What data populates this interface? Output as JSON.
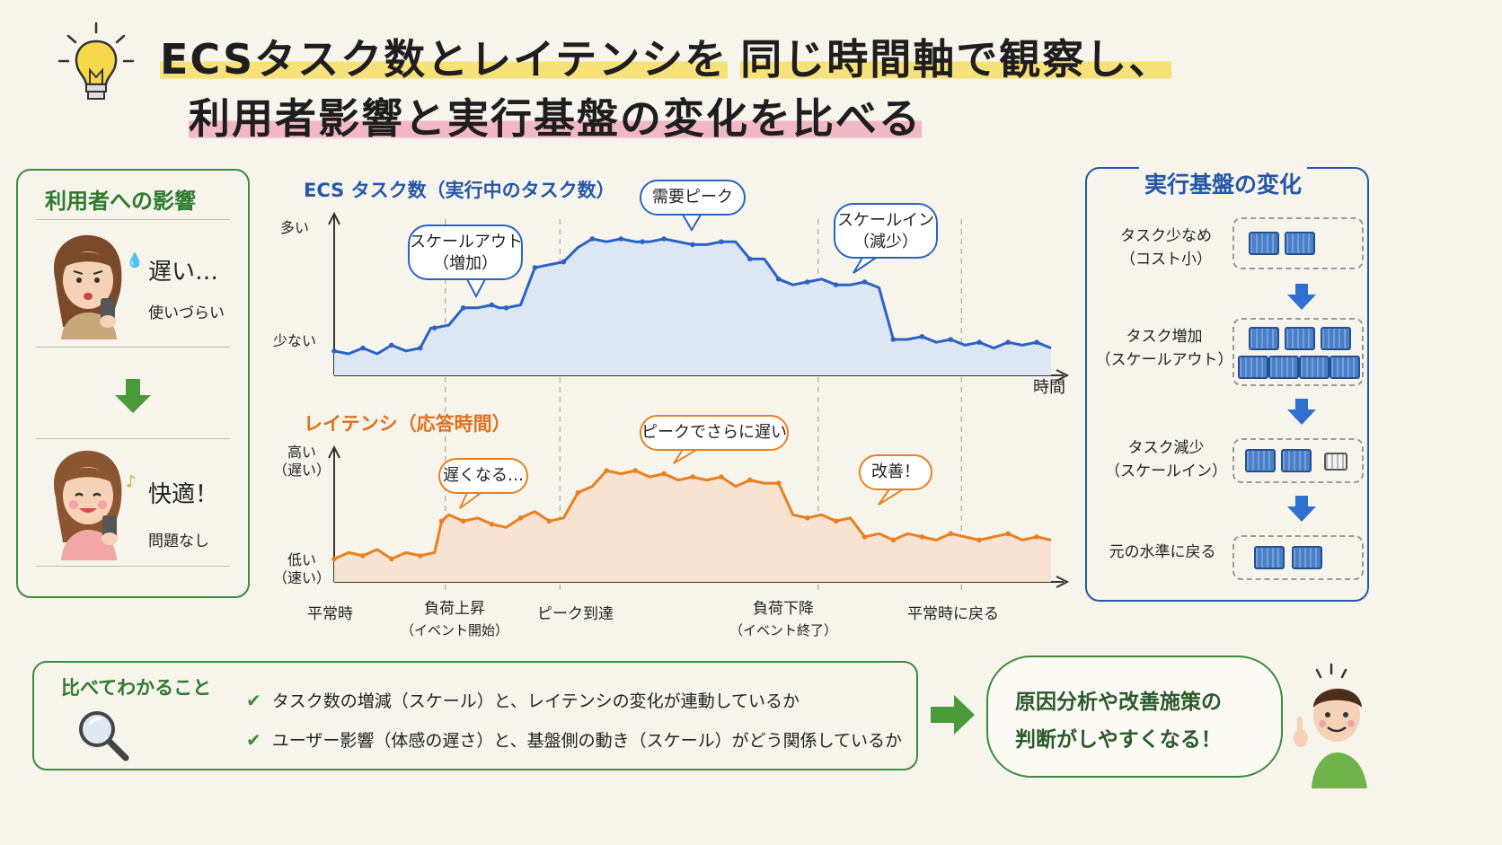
{
  "title": {
    "line1_a": "ECSタスク数とレイテンシを",
    "line1_b": "同じ時間軸で観察し、",
    "line2": "利用者影響と実行基盤の変化を比べる"
  },
  "user_impact": {
    "heading": "利用者への影響",
    "before_main": "遅い…",
    "before_sub": "使いづらい",
    "after_main": "快適！",
    "after_sub": "問題なし"
  },
  "infra": {
    "heading": "実行基盤の変化",
    "stages": [
      {
        "label_1": "タスク少なめ",
        "label_2": "（コスト小）",
        "crates": 2,
        "empty": 0
      },
      {
        "label_1": "タスク増加",
        "label_2": "（スケールアウト）",
        "crates": 7,
        "empty": 0
      },
      {
        "label_1": "タスク減少",
        "label_2": "（スケールイン）",
        "crates": 2,
        "empty": 1
      },
      {
        "label_1": "元の水準に戻る",
        "label_2": "",
        "crates": 2,
        "empty": 0
      }
    ]
  },
  "chart_data": [
    {
      "type": "line",
      "title": "ECS タスク数（実行中のタスク数）",
      "y_tick_top": "多い",
      "y_tick_bottom": "少ない",
      "xlabel": "時間",
      "color": "#2a63c4",
      "fill": "#dde6f3",
      "x": [
        0,
        4,
        8,
        12,
        16,
        20,
        24,
        27,
        28,
        32,
        36,
        40,
        44,
        46,
        48,
        52,
        56,
        60,
        64,
        68,
        72,
        76,
        80,
        84,
        86,
        88,
        92,
        96,
        100,
        104,
        108,
        112,
        116,
        120,
        124,
        128,
        132,
        136,
        140,
        144,
        148,
        152,
        156,
        160,
        164,
        168,
        172,
        176,
        180,
        184,
        188,
        192,
        196,
        200
      ],
      "values": [
        1.1,
        1.0,
        1.2,
        1.0,
        1.3,
        1.1,
        1.2,
        1.9,
        1.9,
        2.0,
        2.6,
        2.6,
        2.7,
        2.6,
        2.6,
        2.7,
        4.0,
        4.1,
        4.2,
        4.7,
        5.0,
        4.9,
        5.0,
        4.9,
        4.9,
        4.9,
        5.0,
        4.9,
        4.8,
        4.8,
        4.9,
        4.9,
        4.3,
        4.3,
        3.6,
        3.4,
        3.5,
        3.6,
        3.4,
        3.4,
        3.5,
        3.3,
        1.5,
        1.5,
        1.6,
        1.4,
        1.5,
        1.3,
        1.4,
        1.2,
        1.4,
        1.3,
        1.4,
        1.2
      ],
      "callouts": [
        {
          "text_1": "スケールアウト",
          "text_2": "（増加）"
        },
        {
          "text_1": "需要ピーク",
          "text_2": ""
        },
        {
          "text_1": "スケールイン",
          "text_2": "（減少）"
        }
      ]
    },
    {
      "type": "line",
      "title": "レイテンシ（応答時間）",
      "y_tick_top_1": "高い",
      "y_tick_top_2": "（遅い）",
      "y_tick_bottom_1": "低い",
      "y_tick_bottom_2": "（速い）",
      "color": "#e8801e",
      "fill": "#f8e3d3",
      "x": [
        0,
        4,
        8,
        12,
        16,
        20,
        24,
        28,
        30,
        32,
        36,
        40,
        44,
        48,
        52,
        56,
        60,
        64,
        68,
        72,
        76,
        80,
        84,
        88,
        92,
        96,
        100,
        104,
        108,
        112,
        116,
        120,
        124,
        128,
        132,
        136,
        140,
        144,
        148,
        152,
        156,
        160,
        164,
        168,
        172,
        176,
        180,
        184,
        188,
        192,
        196,
        200
      ],
      "values": [
        1.0,
        1.2,
        1.1,
        1.3,
        1.0,
        1.2,
        1.1,
        1.2,
        2.2,
        2.4,
        2.2,
        2.3,
        2.1,
        2.0,
        2.3,
        2.5,
        2.2,
        2.3,
        3.1,
        3.3,
        3.8,
        3.7,
        3.8,
        3.6,
        3.7,
        3.5,
        3.6,
        3.5,
        3.6,
        3.3,
        3.5,
        3.4,
        3.4,
        2.4,
        2.3,
        2.4,
        2.2,
        2.3,
        1.7,
        1.8,
        1.6,
        1.8,
        1.7,
        1.6,
        1.8,
        1.7,
        1.6,
        1.7,
        1.8,
        1.6,
        1.7,
        1.6
      ],
      "callouts": [
        {
          "text_1": "遅くなる…"
        },
        {
          "text_1": "ピークでさらに遅い"
        },
        {
          "text_1": "改善！"
        }
      ]
    }
  ],
  "x_events": [
    {
      "label_1": "平常時",
      "label_2": ""
    },
    {
      "label_1": "負荷上昇",
      "label_2": "（イベント開始）"
    },
    {
      "label_1": "ピーク到達",
      "label_2": ""
    },
    {
      "label_1": "負荷下降",
      "label_2": "（イベント終了）"
    },
    {
      "label_1": "平常時に戻る",
      "label_2": ""
    }
  ],
  "comparison": {
    "heading": "比べてわかること",
    "items": [
      "タスク数の増減（スケール）と、レイテンシの変化が連動しているか",
      "ユーザー影響（体感の遅さ）と、基盤側の動き（スケール）がどう関係しているか"
    ]
  },
  "conclusion": {
    "line1": "原因分析や改善施策の",
    "line2": "判断がしやすくなる！"
  },
  "colors": {
    "green": "#3f8a3f",
    "blue": "#2557a8",
    "orange": "#e0701a",
    "highlight_yellow": "#f7e27a",
    "highlight_pink": "#f3b8c6"
  }
}
